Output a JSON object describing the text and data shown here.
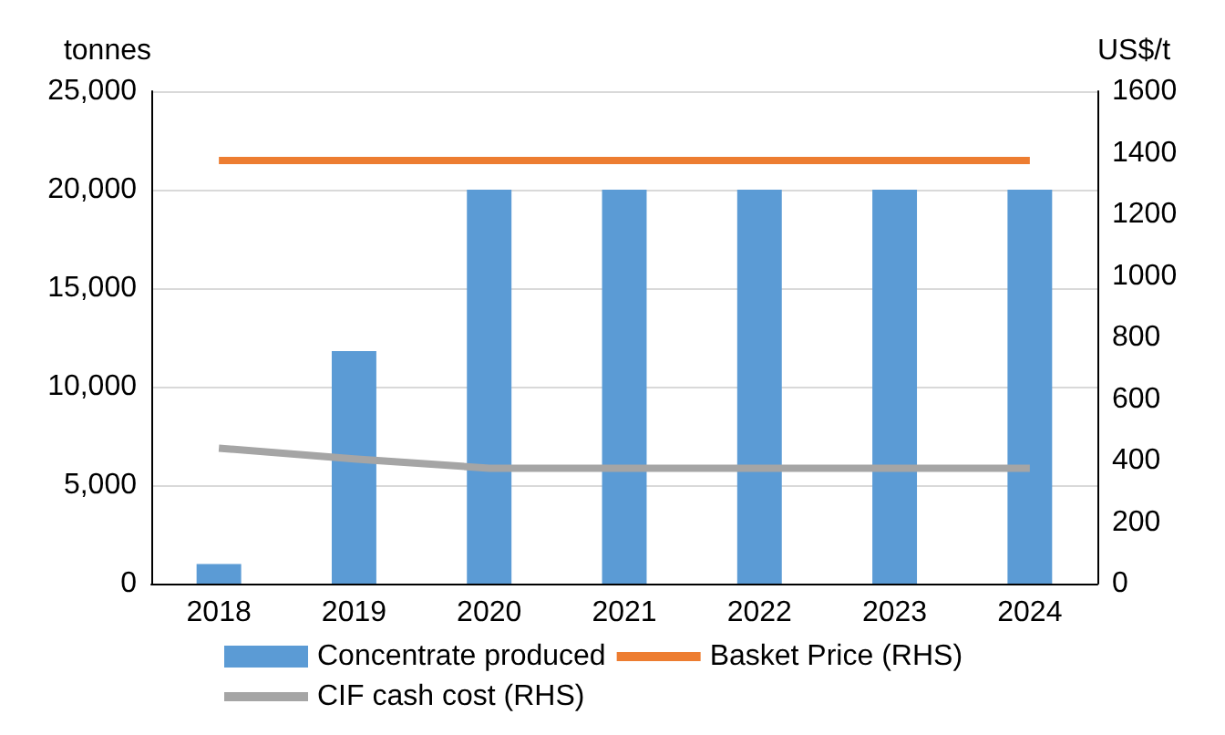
{
  "chart_data": {
    "type": "bar",
    "ylabel": "tonnes",
    "y2label": "US$/t",
    "categories": [
      "2018",
      "2019",
      "2020",
      "2021",
      "2022",
      "2023",
      "2024"
    ],
    "series": [
      {
        "name": "Concentrate produced",
        "color": "#5b9bd5",
        "values": [
          1000,
          11800,
          20000,
          20000,
          20000,
          20000,
          20000
        ]
      },
      {
        "name": "Basket Price (RHS)",
        "type": "line",
        "axis": "y2",
        "color": "#ed7d31",
        "values": [
          1375,
          1375,
          1375,
          1375,
          1375,
          1375,
          1375
        ]
      },
      {
        "name": "CIF cash cost (RHS)",
        "type": "line",
        "axis": "y2",
        "color": "#a5a5a5",
        "values": [
          440,
          405,
          375,
          375,
          375,
          375,
          375
        ]
      }
    ],
    "ylim": [
      0,
      25000
    ],
    "yticks": [
      0,
      {
        "value": 5000,
        "label": "5,000"
      },
      {
        "value": 10000,
        "label": "10,000"
      },
      {
        "value": 15000,
        "label": "15,000"
      },
      {
        "value": 20000,
        "label": "20,000"
      },
      {
        "value": 25000,
        "label": "25,000"
      }
    ],
    "y2lim": [
      0,
      1600
    ],
    "y2ticks": [
      0,
      200,
      400,
      600,
      800,
      1000,
      1200,
      1400,
      1600
    ],
    "grid": "y",
    "legend": "bottom",
    "marker": "none"
  }
}
